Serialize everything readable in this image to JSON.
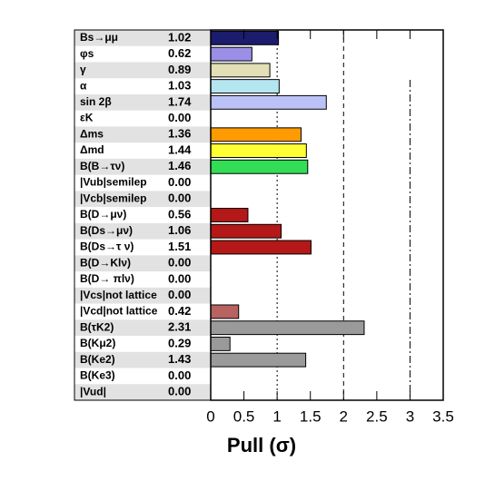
{
  "chart_data": {
    "type": "bar",
    "orientation": "horizontal",
    "categories": [
      "Bs→μμ",
      "φs",
      "γ",
      "α",
      "sin 2β",
      "εK",
      "Δms",
      "Δmd",
      "B(B→τν)",
      "|Vub|semilep",
      "|Vcb|semilep",
      "B(D→μν)",
      "B(Ds→μν)",
      "B(Ds→τ ν)",
      "B(D→Klν)",
      "B(D→ πlν)",
      "|Vcs|not lattice",
      "|Vcd|not lattice",
      "B(τK2)",
      "B(Kμ2)",
      "B(Ke2)",
      "B(Ke3)",
      "|Vud|"
    ],
    "values": [
      1.02,
      0.62,
      0.89,
      1.03,
      1.74,
      0,
      1.36,
      1.44,
      1.46,
      0,
      0,
      0.56,
      1.06,
      1.51,
      0,
      0,
      0,
      0.42,
      2.31,
      0.29,
      1.43,
      0,
      0
    ],
    "value_labels": [
      "1.02",
      "0.62",
      "0.89",
      "1.03",
      "1.74",
      "0.00",
      "1.36",
      "1.44",
      "1.46",
      "0.00",
      "0.00",
      "0.56",
      "1.06",
      "1.51",
      "0.00",
      "0.00",
      "0.00",
      "0.42",
      "2.31",
      "0.29",
      "1.43",
      "0.00",
      "0.00"
    ],
    "colors": [
      "#1c1c6e",
      "#9a8ee6",
      "#e2e0b4",
      "#b4e6f0",
      "#bac2f8",
      "#cccccc",
      "#ff9a00",
      "#ffff33",
      "#33dd55",
      "#cccccc",
      "#cccccc",
      "#b41818",
      "#b41818",
      "#b41818",
      "#b41818",
      "#b41818",
      "#b86262",
      "#b86262",
      "#9a9a9a",
      "#9a9a9a",
      "#9a9a9a",
      "#9a9a9a",
      "#9a9a9a"
    ],
    "xlim": [
      0,
      3.5
    ],
    "xticks": [
      0,
      0.5,
      1,
      1.5,
      2,
      2.5,
      3,
      3.5
    ],
    "vlines": [
      1,
      2,
      3
    ],
    "xlabel": "Pull (σ)"
  }
}
